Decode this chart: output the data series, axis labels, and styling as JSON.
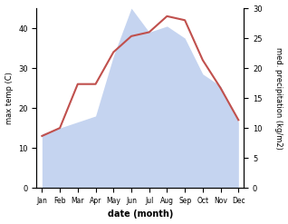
{
  "months": [
    "Jan",
    "Feb",
    "Mar",
    "Apr",
    "May",
    "Jun",
    "Jul",
    "Aug",
    "Sep",
    "Oct",
    "Nov",
    "Dec"
  ],
  "temp": [
    13,
    15,
    26,
    26,
    34,
    38,
    39,
    43,
    42,
    32,
    25,
    17
  ],
  "precip": [
    9,
    10,
    11,
    12,
    22,
    30,
    26,
    27,
    25,
    19,
    17,
    11
  ],
  "temp_color": "#c0504d",
  "precip_fill_color": "#c5d4f0",
  "temp_ylim": [
    0,
    45
  ],
  "precip_ylim": [
    0,
    30
  ],
  "temp_yticks": [
    0,
    10,
    20,
    30,
    40
  ],
  "precip_yticks": [
    0,
    5,
    10,
    15,
    20,
    25,
    30
  ],
  "xlabel": "date (month)",
  "ylabel_left": "max temp (C)",
  "ylabel_right": "med. precipitation (kg/m2)",
  "bg_color": "#ffffff",
  "figsize": [
    3.18,
    2.47
  ],
  "dpi": 100
}
